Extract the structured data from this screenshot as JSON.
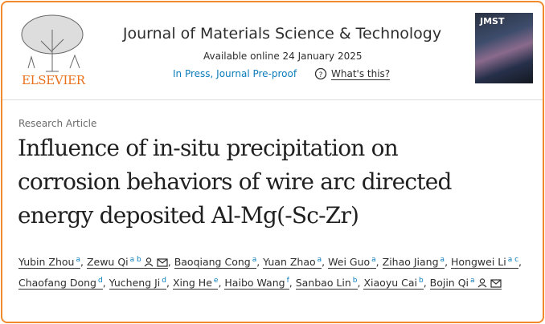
{
  "header": {
    "publisher": "ELSEVIER",
    "journal": "Journal of Materials Science & Technology",
    "available": "Available online 24 January 2025",
    "status": "In Press, Journal Pre-proof",
    "help": "What's this?",
    "cover": "JMST"
  },
  "article": {
    "type": "Research Article",
    "title_lines": [
      "Influence of in-situ precipitation on",
      "corrosion behaviors of wire arc directed",
      "energy deposited Al-Mg(-Sc-Zr)"
    ]
  },
  "authors": [
    {
      "name": "Yubin Zhou",
      "aff": "a"
    },
    {
      "name": "Zewu Qi",
      "aff": "a b"
    },
    {
      "name": "Baoqiang Cong",
      "aff": "a"
    },
    {
      "name": "Yuan Zhao",
      "aff": "a"
    },
    {
      "name": "Wei Guo",
      "aff": "a"
    },
    {
      "name": "Zihao Jiang",
      "aff": "a"
    },
    {
      "name": "Hongwei Li",
      "aff": "a c"
    },
    {
      "name": "Chaofang Dong",
      "aff": "d"
    },
    {
      "name": "Yucheng Ji",
      "aff": "d"
    },
    {
      "name": "Xing He",
      "aff": "e"
    },
    {
      "name": "Haibo Wang",
      "aff": "f"
    },
    {
      "name": "Sanbao Lin",
      "aff": "b"
    },
    {
      "name": "Xiaoyu Cai",
      "aff": "b"
    },
    {
      "name": "Bojin Qi",
      "aff": "a"
    }
  ]
}
